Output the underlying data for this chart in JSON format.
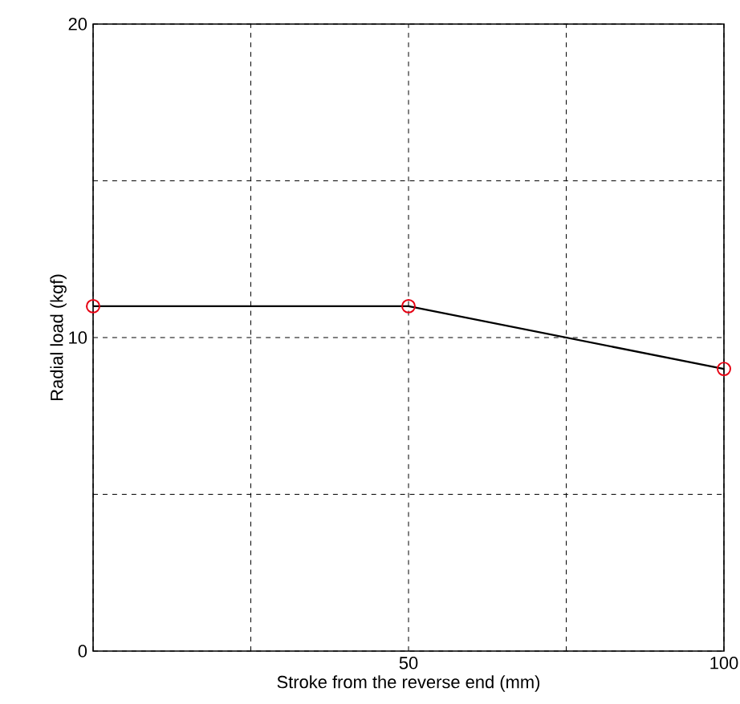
{
  "chart_data": {
    "type": "line",
    "xlabel": "Stroke from the reverse end (mm)",
    "ylabel": "Radial load (kgf)",
    "x": [
      0,
      50,
      100
    ],
    "series": [
      {
        "color": "#000000",
        "colors": [
          "#e60012",
          "#e60012",
          "#e60012"
        ],
        "values": [
          11,
          11,
          9
        ]
      }
    ],
    "xlim": [
      0,
      100
    ],
    "ylim": [
      0,
      20
    ],
    "xticks": [
      {
        "value": 0,
        "label": null
      },
      {
        "value": 25,
        "label": null
      },
      50,
      {
        "value": 75,
        "label": null
      },
      100
    ],
    "yticks": [
      0,
      {
        "value": 5,
        "label": null
      },
      10,
      {
        "value": 15,
        "label": null
      },
      20
    ],
    "grid": true,
    "marker": "circle",
    "line_style": "solid"
  }
}
